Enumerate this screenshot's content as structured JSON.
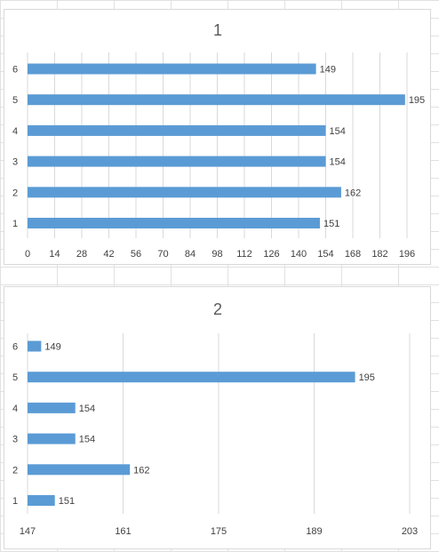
{
  "chart_data": [
    {
      "type": "bar",
      "orientation": "horizontal",
      "title": "1",
      "categories": [
        "1",
        "2",
        "3",
        "4",
        "5",
        "6"
      ],
      "values": [
        151,
        162,
        154,
        154,
        195,
        149
      ],
      "xlim": [
        0,
        196
      ],
      "xticks": [
        "0",
        "14",
        "28",
        "42",
        "56",
        "70",
        "84",
        "98",
        "112",
        "126",
        "140",
        "154",
        "168",
        "182",
        "196"
      ],
      "data_labels": [
        "151",
        "162",
        "154",
        "154",
        "195",
        "149"
      ],
      "grid": true,
      "color": "#5b9bd5"
    },
    {
      "type": "bar",
      "orientation": "horizontal",
      "title": "2",
      "categories": [
        "1",
        "2",
        "3",
        "4",
        "5",
        "6"
      ],
      "values": [
        151,
        162,
        154,
        154,
        195,
        149
      ],
      "xlim": [
        147,
        203
      ],
      "xticks": [
        "147",
        "161",
        "175",
        "189",
        "203"
      ],
      "data_labels": [
        "151",
        "162",
        "154",
        "154",
        "195",
        "149"
      ],
      "grid": true,
      "color": "#5b9bd5"
    }
  ]
}
